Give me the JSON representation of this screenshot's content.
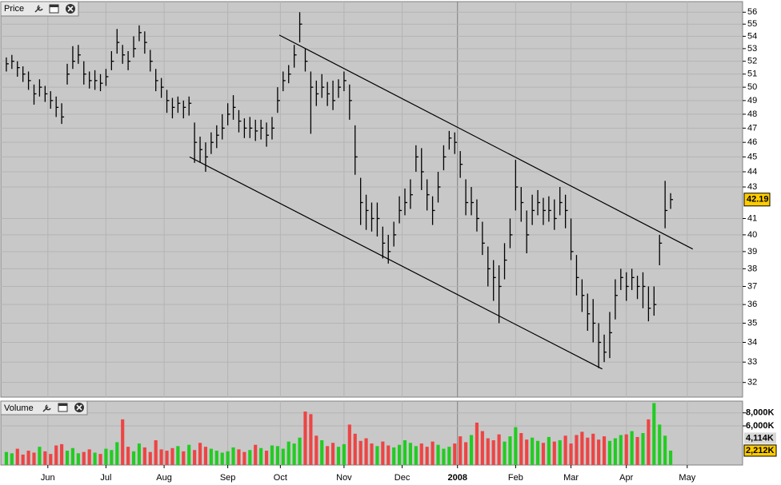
{
  "chart_data": {
    "type": "ohlc",
    "title": "Price",
    "volume_title": "Volume",
    "x": [
      2,
      4,
      6,
      8,
      10,
      12,
      14,
      16,
      18,
      20,
      22,
      24,
      26,
      28,
      30,
      32,
      34,
      36,
      38,
      40,
      42,
      44,
      46,
      48,
      50,
      52,
      54,
      56,
      58,
      60,
      62,
      64,
      66,
      68,
      70,
      72,
      74,
      76,
      78,
      80,
      82,
      84,
      86,
      88,
      90,
      92,
      94,
      96,
      98,
      100,
      102,
      104,
      106,
      108,
      110,
      112,
      114,
      116,
      118,
      120,
      122,
      124,
      126,
      128,
      130,
      132,
      134,
      136,
      138,
      140,
      142,
      144,
      146,
      148,
      150,
      152,
      154,
      156,
      158,
      160,
      162,
      164,
      166,
      168,
      170,
      172,
      174,
      176,
      178,
      180,
      182,
      184,
      186,
      188,
      190,
      192,
      194,
      196,
      198,
      200,
      202,
      204,
      206,
      208,
      210,
      212,
      214,
      216,
      218,
      220,
      222,
      224,
      226,
      228,
      230,
      232,
      234,
      236,
      238,
      240,
      242
    ],
    "high": [
      52.3,
      52.5,
      52,
      51.6,
      51.2,
      50.2,
      50.6,
      50.1,
      49.7,
      49.3,
      48.8,
      51.8,
      53.2,
      53.3,
      52,
      51.2,
      51.3,
      51,
      51.4,
      52.8,
      54.6,
      53.3,
      52.8,
      54,
      54.9,
      54.4,
      52.9,
      51.4,
      50.7,
      49.8,
      49.2,
      49.3,
      49,
      49.3,
      47.4,
      46.4,
      46,
      46.7,
      47.2,
      48,
      48.8,
      49.4,
      48.3,
      47.7,
      47.8,
      47.6,
      47.6,
      47.4,
      47.8,
      50,
      51.2,
      51.7,
      53.3,
      56,
      53,
      51.2,
      50.5,
      51,
      50.4,
      50.5,
      50.6,
      51.2,
      50.2,
      47.2,
      43.6,
      42.5,
      42,
      42,
      40.5,
      40,
      40.8,
      42.4,
      42.9,
      43.5,
      45.8,
      45.6,
      43.5,
      42.4,
      44,
      45.8,
      46.8,
      46.7,
      45.4,
      43.5,
      43,
      42.2,
      40.8,
      39.3,
      38.5,
      38.2,
      39.5,
      41,
      44.8,
      43,
      41.5,
      42.5,
      42.8,
      42.3,
      42.4,
      42.2,
      43,
      42.5,
      41,
      38.8,
      37.4,
      36.6,
      36.3,
      35,
      34.4,
      35.6,
      37.4,
      38,
      37.8,
      38,
      37.6,
      37.8,
      37,
      37,
      40,
      43.4,
      42.6
    ],
    "low": [
      51.2,
      51.4,
      50.8,
      50.4,
      49.8,
      48.7,
      49.3,
      48.9,
      48.4,
      47.8,
      47.3,
      50.2,
      51.4,
      51.8,
      50.2,
      49.9,
      49.8,
      49.7,
      50.1,
      51.3,
      52.6,
      51.8,
      51.3,
      52.3,
      53.6,
      52.6,
      51.2,
      49.7,
      49.2,
      48.1,
      47.7,
      48.1,
      47.7,
      47.9,
      44.6,
      44.6,
      44,
      45.2,
      45.6,
      46.2,
      47.2,
      47.6,
      46.7,
      46.3,
      46.3,
      46.1,
      46.2,
      45.7,
      46.2,
      48.1,
      49.7,
      50.3,
      51.5,
      53.5,
      51.2,
      46.6,
      48.6,
      49.2,
      48.6,
      48.3,
      49.2,
      49.7,
      47.6,
      43.8,
      40.6,
      40.3,
      40.2,
      39.9,
      38.6,
      38.3,
      39.3,
      40.7,
      41.2,
      41.6,
      44,
      42.8,
      41.5,
      40.6,
      42,
      44.1,
      45.5,
      45.2,
      43.6,
      41.2,
      41.2,
      40.2,
      38.8,
      37,
      36.2,
      35,
      37.4,
      39.2,
      41.5,
      40.8,
      38.9,
      40.6,
      41.2,
      40.6,
      40.8,
      40.3,
      41.2,
      40.4,
      38.5,
      36.5,
      35.6,
      34.6,
      34,
      32.7,
      33,
      33.2,
      35.2,
      36.8,
      36.2,
      36.8,
      36.3,
      35.8,
      35.1,
      35.4,
      38.2,
      40.4,
      41.6
    ],
    "close": [
      51.8,
      52,
      51.5,
      51,
      50.5,
      49.5,
      50,
      49.5,
      49,
      48.5,
      47.8,
      51,
      52,
      52.5,
      51,
      50.5,
      50.5,
      50.3,
      50.8,
      52,
      53.5,
      52.5,
      52,
      53,
      54.3,
      53.5,
      52,
      50.5,
      50,
      49,
      48.5,
      48.8,
      48.5,
      48.8,
      46,
      45.5,
      45,
      46,
      46.5,
      47,
      48,
      48.5,
      47.5,
      47,
      47,
      46.8,
      47,
      46.5,
      47,
      49,
      50.5,
      51,
      52.5,
      55,
      52,
      50,
      49.5,
      50,
      49.5,
      49,
      50,
      50.5,
      49,
      45,
      42,
      41.5,
      41,
      41,
      39.5,
      39,
      40,
      41.5,
      42,
      42.5,
      45,
      44,
      42.5,
      41.5,
      43,
      45,
      46.3,
      46,
      44.5,
      42,
      42,
      41,
      39.5,
      38,
      37.5,
      37,
      38.5,
      40,
      43,
      42,
      40,
      41.5,
      42,
      41.5,
      41.5,
      41,
      42,
      41.5,
      39,
      37.5,
      36.5,
      35.5,
      35,
      34,
      33.5,
      34.5,
      36.5,
      37.5,
      37,
      37.5,
      37,
      37,
      35.8,
      36,
      39.5,
      41.5,
      42.19
    ],
    "volume": [
      2000,
      1800,
      2500,
      1600,
      2200,
      1900,
      2800,
      2100,
      1700,
      3000,
      3200,
      2200,
      2600,
      1800,
      2000,
      2400,
      1900,
      1700,
      2500,
      2300,
      3500,
      7000,
      2800,
      2100,
      3300,
      2700,
      2000,
      3800,
      2400,
      2200,
      2600,
      2900,
      2100,
      3100,
      2300,
      3400,
      2800,
      2500,
      2200,
      1900,
      2100,
      2700,
      2400,
      2000,
      2300,
      3100,
      2600,
      2200,
      3000,
      2900,
      2500,
      3600,
      3300,
      4200,
      8200,
      7800,
      4500,
      3800,
      2900,
      3400,
      2800,
      3200,
      6200,
      4800,
      3700,
      4100,
      3300,
      2900,
      3600,
      3000,
      2700,
      3100,
      3800,
      3400,
      2900,
      3300,
      2800,
      3600,
      3100,
      2500,
      2800,
      3300,
      4400,
      3500,
      4600,
      6500,
      5200,
      4100,
      3800,
      4700,
      3600,
      4400,
      5800,
      4900,
      3900,
      4200,
      3700,
      3400,
      4300,
      3600,
      3800,
      4500,
      3300,
      4600,
      5100,
      4200,
      4800,
      3900,
      4400,
      3700,
      4100,
      4600,
      4700,
      5200,
      4300,
      4900,
      7000,
      9500,
      6200,
      4500,
      2212
    ],
    "xlim": [
      0,
      268
    ],
    "xticks": [
      {
        "value": 17,
        "label": "Jun"
      },
      {
        "value": 38,
        "label": "Jul"
      },
      {
        "value": 59,
        "label": "Aug"
      },
      {
        "value": 82,
        "label": "Sep"
      },
      {
        "value": 101,
        "label": "Oct"
      },
      {
        "value": 124,
        "label": "Nov"
      },
      {
        "value": 145,
        "label": "Dec"
      },
      {
        "value": 165,
        "label": "2008"
      },
      {
        "value": 186,
        "label": "Feb"
      },
      {
        "value": 206,
        "label": "Mar"
      },
      {
        "value": 226,
        "label": "Apr"
      },
      {
        "value": 248,
        "label": "May"
      }
    ],
    "ylim": [
      31.3,
      56.7
    ],
    "log_scale": true,
    "yticks": [
      32,
      33,
      34,
      35,
      36,
      37,
      38,
      39,
      40,
      41,
      43,
      44,
      45,
      46,
      47,
      48,
      49,
      50,
      51,
      52,
      53,
      54,
      55,
      56
    ],
    "last_price": 42.19,
    "last_price_color": "#ffcc00",
    "vlim": [
      0,
      9800
    ],
    "vticks": [
      {
        "value": 6000,
        "label": "6,000K"
      },
      {
        "value": 8000,
        "label": "8,000K"
      }
    ],
    "volume_markers": [
      {
        "value": 4114,
        "label": "4,114K",
        "color": "#ff6666"
      },
      {
        "value": 2212,
        "label": "2,212K",
        "color": "#ffcc00"
      }
    ],
    "bar_color": "#000000",
    "up_color": "#22cc22",
    "down_color": "#ee4444",
    "trend_lines": [
      {
        "x": [
          100.6,
          250
        ],
        "y": [
          54.1,
          39.15
        ]
      },
      {
        "x": [
          68.2,
          217.3
        ],
        "y": [
          45.0,
          32.66
        ]
      }
    ],
    "grid": true
  }
}
